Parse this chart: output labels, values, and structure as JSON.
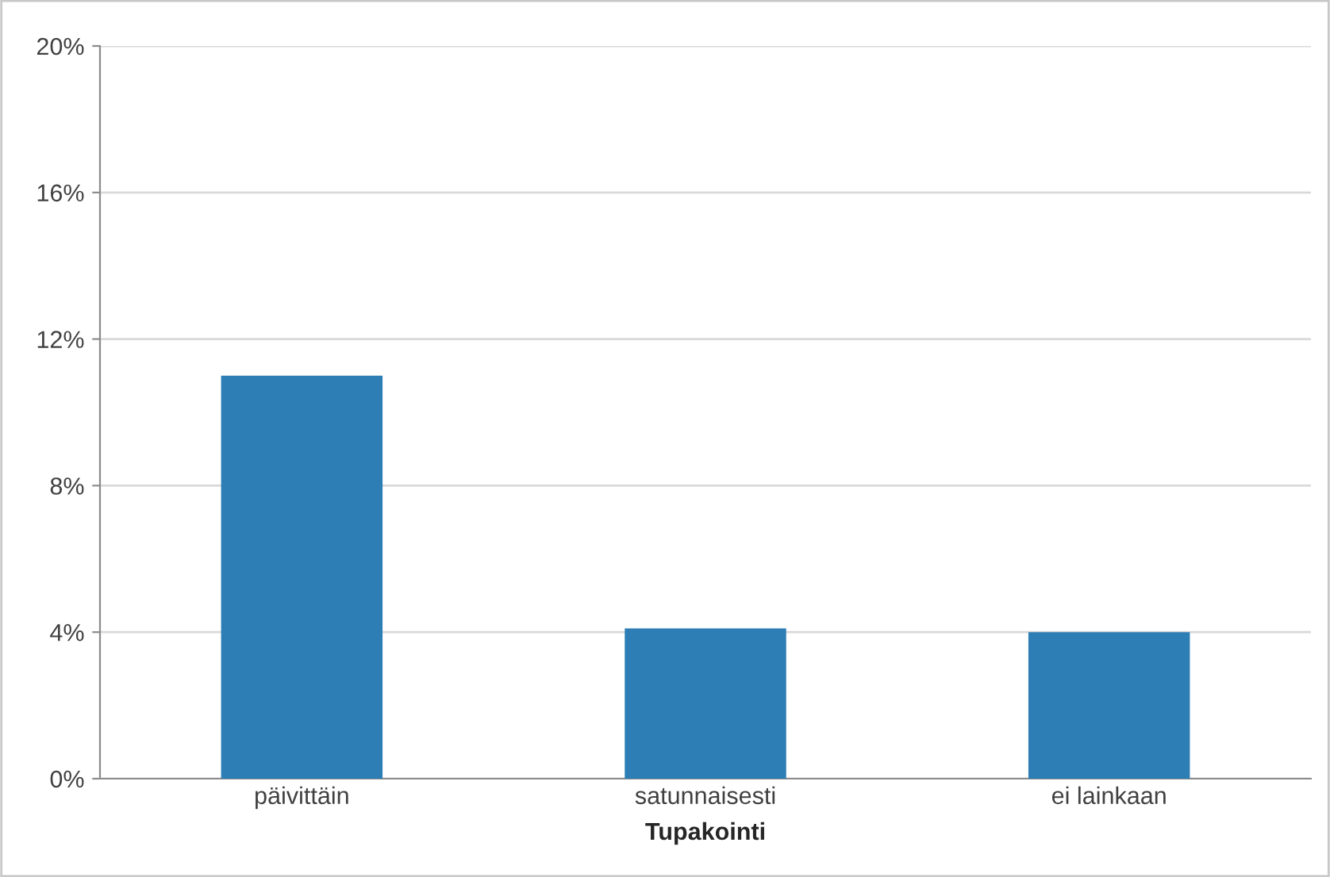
{
  "chart_data": {
    "type": "bar",
    "xlabel": "Tupakointi",
    "categories": [
      "päivittäin",
      "satunnaisesti",
      "ei lainkaan"
    ],
    "values": [
      11.0,
      4.1,
      4.0
    ],
    "color": "#2e7eb6",
    "ylim": [
      0,
      20
    ],
    "yticks": [
      {
        "value": 0,
        "label": "0%"
      },
      {
        "value": 4,
        "label": "4%"
      },
      {
        "value": 8,
        "label": "8%"
      },
      {
        "value": 12,
        "label": "12%"
      },
      {
        "value": 16,
        "label": "16%"
      },
      {
        "value": 20,
        "label": "20%"
      }
    ],
    "grid": "y",
    "legend": false
  }
}
